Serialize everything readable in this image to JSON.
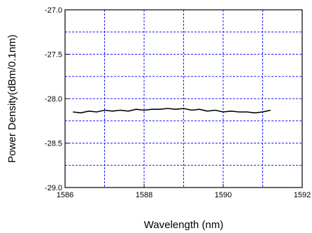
{
  "chart_data": {
    "type": "line",
    "title": "",
    "xlabel": "Wavelength (nm)",
    "ylabel": "Power Density(dBm/0.1nm)",
    "xlim": [
      1586,
      1592
    ],
    "ylim": [
      -29.0,
      -27.0
    ],
    "x_ticks": [
      1586,
      1588,
      1590,
      1592
    ],
    "x_tick_labels": [
      "1586",
      "1588",
      "1590",
      "1592"
    ],
    "y_ticks": [
      -29.0,
      -28.5,
      -28.0,
      -27.5,
      -27.0
    ],
    "y_tick_labels": [
      "-29.0",
      "-28.5",
      "-28.0",
      "-27.5",
      "-27.0"
    ],
    "grid": true,
    "x_grid": [
      1587,
      1588,
      1589,
      1590,
      1591
    ],
    "y_grid": [
      -28.75,
      -28.5,
      -28.25,
      -28.0,
      -27.75,
      -27.5,
      -27.25
    ],
    "grid_color": "#1a1aff",
    "line_color": "#000000",
    "series": [
      {
        "x": [
          1586.2,
          1586.4,
          1586.6,
          1586.8,
          1587.0,
          1587.2,
          1587.4,
          1587.6,
          1587.8,
          1588.0,
          1588.2,
          1588.4,
          1588.6,
          1588.8,
          1589.0,
          1589.2,
          1589.4,
          1589.6,
          1589.8,
          1590.0,
          1590.2,
          1590.4,
          1590.6,
          1590.8,
          1591.0,
          1591.2
        ],
        "y": [
          -28.15,
          -28.16,
          -28.14,
          -28.15,
          -28.13,
          -28.14,
          -28.13,
          -28.14,
          -28.12,
          -28.13,
          -28.12,
          -28.12,
          -28.11,
          -28.12,
          -28.11,
          -28.13,
          -28.12,
          -28.14,
          -28.13,
          -28.15,
          -28.14,
          -28.15,
          -28.15,
          -28.16,
          -28.15,
          -28.13
        ]
      }
    ]
  }
}
